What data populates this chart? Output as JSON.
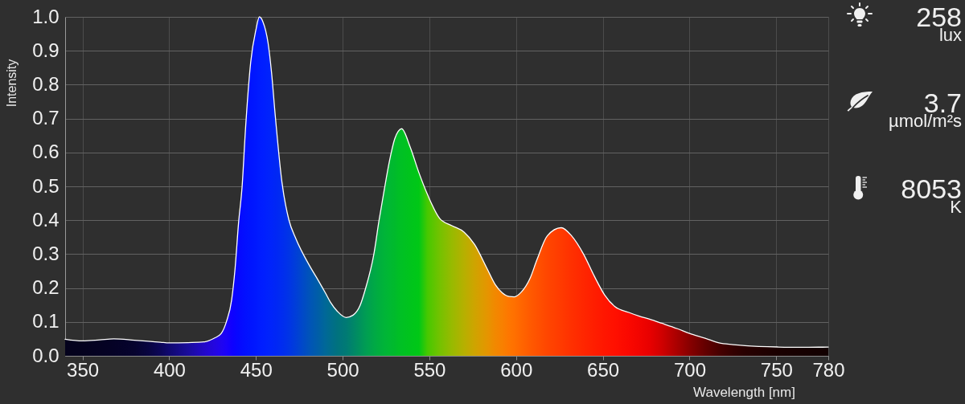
{
  "chart_data": {
    "type": "area",
    "xlabel": "Wavelength [nm]",
    "ylabel": "Intensity",
    "x": [
      340,
      350,
      360,
      368,
      380,
      388,
      395,
      400,
      411,
      420,
      426,
      430,
      433,
      436,
      438,
      440,
      442,
      444,
      447,
      450,
      452,
      454,
      457,
      459,
      461,
      465,
      469,
      473,
      481,
      486,
      490,
      493,
      497,
      502,
      506,
      510,
      513,
      518,
      521,
      524,
      527,
      530,
      532,
      534,
      539,
      544,
      549,
      556,
      563,
      570,
      576,
      583,
      588,
      592,
      596,
      599,
      603,
      608,
      612,
      618,
      626,
      632,
      639,
      645,
      651,
      657,
      665,
      671,
      677,
      684,
      693,
      700,
      709,
      717,
      725,
      732,
      751,
      764,
      780
    ],
    "series": [
      {
        "color": "#ffffff",
        "colors": [
          "#04021c",
          "#04021e",
          "#050222",
          "#050226",
          "#06032e",
          "#080440",
          "#0c0658",
          "#100870",
          "#1a0c9c",
          "#2208c8",
          "#2406e0",
          "#2004f0",
          "#1a02fa",
          "#1000ff",
          "#0a04ff",
          "#0608ff",
          "#040cff",
          "#0210ff",
          "#0014ff",
          "#0018ff",
          "#001cff",
          "#001eff",
          "#0022fc",
          "#0024fa",
          "#0026f6",
          "#002cf0",
          "#0034e6",
          "#003ed8",
          "#0054b8",
          "#005ea6",
          "#006898",
          "#006c8c",
          "#00727e",
          "#007a74",
          "#008668",
          "#00925c",
          "#009c54",
          "#00a846",
          "#00ae3e",
          "#00b438",
          "#00b832",
          "#00ba2c",
          "#00be26",
          "#00c024",
          "#00c41c",
          "#00c816",
          "#48c800",
          "#74c200",
          "#98ba00",
          "#b6b000",
          "#cea400",
          "#e49600",
          "#f28800",
          "#f88000",
          "#fe7600",
          "#ff7000",
          "#ff6600",
          "#ff5a00",
          "#ff5200",
          "#ff4600",
          "#ff3a00",
          "#ff3000",
          "#ff2600",
          "#ff1e00",
          "#ff1600",
          "#ff1000",
          "#fa0800",
          "#f20400",
          "#e80000",
          "#d00000",
          "#a80000",
          "#880000",
          "#640000",
          "#480000",
          "#340000",
          "#280000",
          "#1a0000",
          "#160000",
          "#120000"
        ],
        "values": [
          0.049,
          0.044,
          0.047,
          0.05,
          0.046,
          0.043,
          0.04,
          0.038,
          0.039,
          0.041,
          0.052,
          0.066,
          0.101,
          0.165,
          0.259,
          0.393,
          0.497,
          0.67,
          0.867,
          0.962,
          1.0,
          0.986,
          0.923,
          0.836,
          0.717,
          0.512,
          0.401,
          0.346,
          0.265,
          0.222,
          0.186,
          0.158,
          0.131,
          0.113,
          0.12,
          0.148,
          0.195,
          0.3,
          0.4,
          0.49,
          0.575,
          0.64,
          0.662,
          0.67,
          0.615,
          0.54,
          0.475,
          0.405,
          0.384,
          0.365,
          0.329,
          0.26,
          0.21,
          0.186,
          0.175,
          0.174,
          0.188,
          0.228,
          0.283,
          0.354,
          0.378,
          0.354,
          0.299,
          0.236,
          0.18,
          0.145,
          0.128,
          0.117,
          0.108,
          0.096,
          0.08,
          0.066,
          0.052,
          0.038,
          0.033,
          0.03,
          0.026,
          0.025,
          0.026
        ]
      }
    ],
    "xlim": [
      340,
      780
    ],
    "xticks": [
      350,
      400,
      450,
      500,
      550,
      600,
      650,
      700,
      750,
      780
    ],
    "ylim": [
      0,
      1
    ],
    "yticks": [
      {
        "value": 0,
        "label": "0.0"
      },
      0.1,
      0.2,
      0.3,
      0.4,
      0.5,
      0.6,
      0.7,
      0.8,
      0.9,
      {
        "value": 1,
        "label": "1.0"
      }
    ],
    "grid": true,
    "annotations": [
      "258",
      "lux",
      "3.7",
      "µmol/m²s",
      "8053",
      "K"
    ]
  }
}
